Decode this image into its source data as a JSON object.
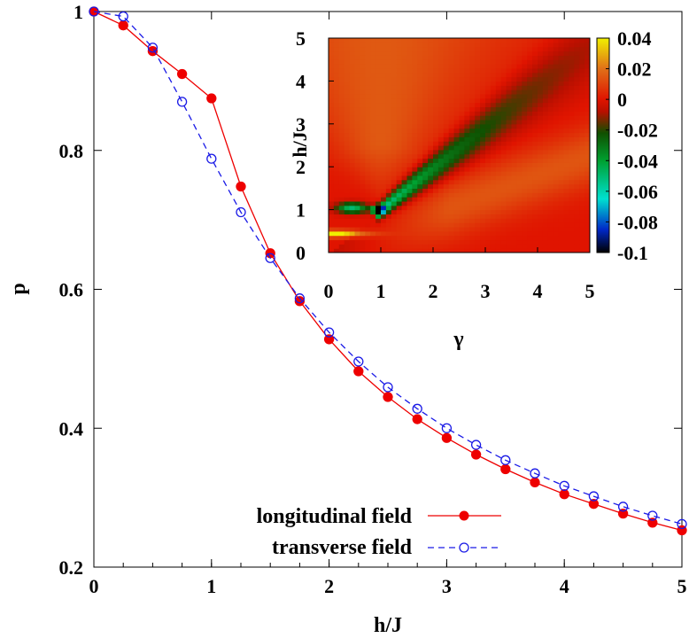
{
  "chart_data": [
    {
      "type": "line",
      "xlabel": "h/J",
      "ylabel": "p",
      "xlim": [
        0,
        5
      ],
      "ylim": [
        0.2,
        1
      ],
      "xticks": [
        "0",
        "1",
        "2",
        "3",
        "4",
        "5"
      ],
      "yticks": [
        "0.2",
        "0.4",
        "0.6",
        "0.8",
        "1"
      ],
      "grid": false,
      "legend_position": "bottom-right",
      "x": [
        0,
        0.25,
        0.5,
        0.75,
        1.0,
        1.25,
        1.5,
        1.75,
        2.0,
        2.25,
        2.5,
        2.75,
        3.0,
        3.25,
        3.5,
        3.75,
        4.0,
        4.25,
        4.5,
        4.75,
        5.0
      ],
      "series": [
        {
          "name": "longitudinal field",
          "color": "#ee0000",
          "marker": "filled-circle",
          "line": "solid",
          "values": [
            1.0,
            0.98,
            0.943,
            0.91,
            0.875,
            0.748,
            0.652,
            0.583,
            0.528,
            0.482,
            0.445,
            0.413,
            0.386,
            0.362,
            0.341,
            0.322,
            0.305,
            0.291,
            0.277,
            0.264,
            0.253
          ]
        },
        {
          "name": "transverse field",
          "color": "#1a1ae6",
          "marker": "open-circle",
          "line": "dashed",
          "values": [
            1.0,
            0.993,
            0.948,
            0.87,
            0.788,
            0.711,
            0.645,
            0.587,
            0.538,
            0.496,
            0.459,
            0.428,
            0.4,
            0.376,
            0.354,
            0.335,
            0.317,
            0.302,
            0.287,
            0.274,
            0.262
          ]
        }
      ]
    },
    {
      "type": "heatmap",
      "xlabel": "γ",
      "ylabel": "h/J",
      "xlim": [
        0,
        5
      ],
      "ylim": [
        0,
        5
      ],
      "xticks": [
        "0",
        "1",
        "2",
        "3",
        "4",
        "5"
      ],
      "yticks": [
        "0",
        "1",
        "2",
        "3",
        "4",
        "5"
      ],
      "colorbar": {
        "range": [
          -0.1,
          0.04
        ],
        "ticks": [
          "0.04",
          "0.02",
          "0",
          "-0.02",
          "-0.04",
          "-0.06",
          "-0.08",
          "-0.1"
        ],
        "stops": [
          {
            "value": -0.1,
            "color": "#000000"
          },
          {
            "value": -0.085,
            "color": "#0028c8"
          },
          {
            "value": -0.065,
            "color": "#00e0d0"
          },
          {
            "value": -0.04,
            "color": "#00a030"
          },
          {
            "value": -0.022,
            "color": "#105000"
          },
          {
            "value": -0.008,
            "color": "#b81000"
          },
          {
            "value": 0.0,
            "color": "#e01400"
          },
          {
            "value": 0.02,
            "color": "#e07018"
          },
          {
            "value": 0.04,
            "color": "#f0f000"
          }
        ]
      }
    }
  ]
}
